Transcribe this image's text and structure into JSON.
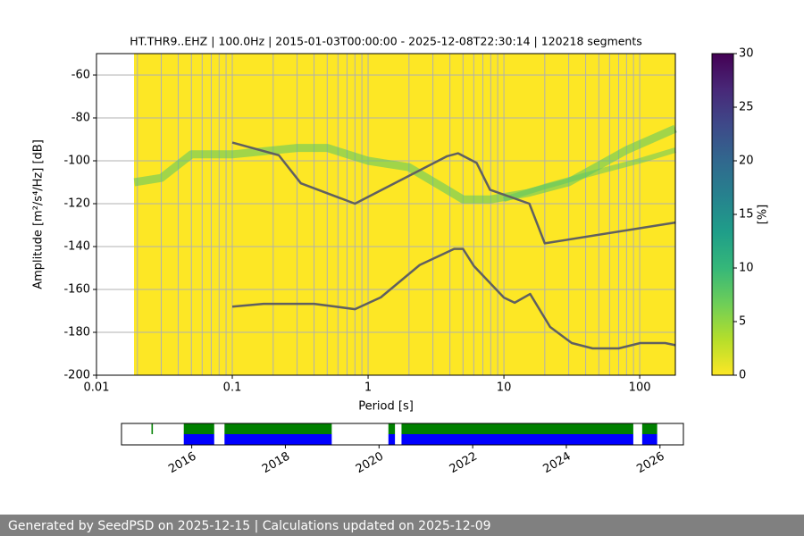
{
  "chart_data": [
    {
      "type": "ppsd",
      "title": "HT.THR9..EHZ | 100.0Hz | 2015-01-03T00:00:00 - 2025-12-08T22:30:14 | 120218 segments",
      "xlabel": "Period [s]",
      "ylabel": "Amplitude [m²/s⁴/Hz] [dB]",
      "xscale": "log",
      "xlim": [
        0.01,
        183
      ],
      "ylim": [
        -200,
        -50
      ],
      "xticks": [
        0.01,
        0.1,
        1,
        10,
        100
      ],
      "xminorticks": [
        0.02,
        0.03,
        0.04,
        0.05,
        0.06,
        0.07,
        0.08,
        0.09,
        0.2,
        0.3,
        0.4,
        0.5,
        0.6,
        0.7,
        0.8,
        0.9,
        2,
        3,
        4,
        5,
        6,
        7,
        8,
        9,
        20,
        30,
        40,
        50,
        60,
        70,
        80,
        90
      ],
      "yticks": [
        -200,
        -180,
        -160,
        -140,
        -120,
        -100,
        -80,
        -60
      ],
      "grid": true,
      "background": "#fde725",
      "series": [
        {
          "color": "#55c667",
          "width": 9,
          "opacity": 0.55,
          "x": [
            0.019,
            0.03,
            0.05,
            0.1,
            0.3,
            0.5,
            1,
            2,
            5,
            8,
            15,
            30,
            80,
            183
          ],
          "values": [
            -110,
            -108,
            -97,
            -97,
            -94,
            -94,
            -100,
            -103,
            -118,
            -118,
            -115,
            -110,
            -95,
            -85
          ]
        },
        {
          "color": "#55c667",
          "width": 6,
          "opacity": 0.5,
          "x": [
            10,
            20,
            50,
            100,
            183
          ],
          "values": [
            -118,
            -112,
            -105,
            -100,
            -95
          ]
        },
        {
          "color": "#606060",
          "width": 2.5,
          "opacity": 1,
          "x": [
            0.1,
            0.22,
            0.32,
            0.8,
            3.8,
            4.6,
            6.3,
            7.9,
            15.4,
            20,
            183
          ],
          "values": [
            -91.5,
            -97.4,
            -110.5,
            -120,
            -97.9,
            -96.5,
            -101,
            -113.5,
            -120,
            -138.5,
            -128.8
          ]
        },
        {
          "color": "#606060",
          "width": 2.5,
          "opacity": 1,
          "x": [
            0.1,
            0.17,
            0.4,
            0.8,
            1.24,
            2.4,
            4.3,
            5,
            6,
            10,
            12,
            15.6,
            21.9,
            31.6,
            45,
            70,
            101,
            154,
            183
          ],
          "values": [
            -168,
            -166.7,
            -166.7,
            -169.2,
            -163.7,
            -148.6,
            -141.1,
            -141.1,
            -149,
            -163.8,
            -166.2,
            -162.1,
            -177.5,
            -185,
            -187.5,
            -187.5,
            -185,
            -185,
            -186
          ]
        }
      ],
      "colorbar": {
        "label": "[%]",
        "lim": [
          0,
          30
        ],
        "ticks": [
          0,
          5,
          10,
          15,
          20,
          25,
          30
        ],
        "colors": [
          "#fde725",
          "#b5de2b",
          "#6ece58",
          "#35b779",
          "#1f9e89",
          "#26828e",
          "#31688e",
          "#3e4989",
          "#482878",
          "#440154"
        ]
      }
    },
    {
      "type": "timeline",
      "xlim": [
        2014.5,
        2026.5
      ],
      "xticks": [
        2016,
        2018,
        2020,
        2022,
        2024,
        2026
      ],
      "series": [
        {
          "color": "#008000",
          "row": "top",
          "values": [
            [
              2015.14,
              2015.17
            ],
            [
              2015.83,
              2016.48
            ],
            [
              2016.7,
              2018.99
            ],
            [
              2020.2,
              2020.34
            ],
            [
              2020.48,
              2025.43
            ],
            [
              2025.62,
              2025.94
            ]
          ]
        },
        {
          "color": "#0000ff",
          "row": "bottom",
          "values": [
            [
              2015.83,
              2016.48
            ],
            [
              2016.7,
              2018.99
            ],
            [
              2020.2,
              2020.34
            ],
            [
              2020.48,
              2025.43
            ],
            [
              2025.62,
              2025.94
            ]
          ]
        }
      ]
    }
  ],
  "footer": "Generated by SeedPSD on 2025-12-15 | Calculations updated on 2025-12-09"
}
